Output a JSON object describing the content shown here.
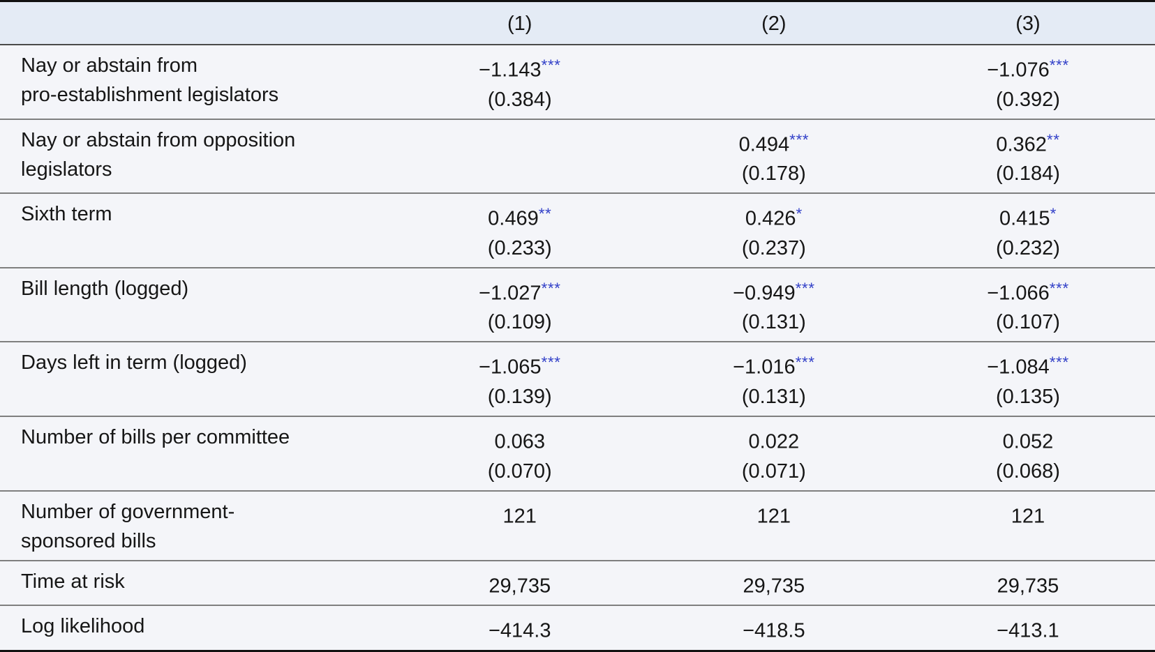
{
  "colors": {
    "star_blue": "#3240c8",
    "header_bg": "#e4ebf5",
    "row_bg": "#f4f5f9",
    "text": "#161616",
    "border_strong": "#111111",
    "border_header": "#4a4a4a",
    "border_row": "#7f7f7f"
  },
  "table": {
    "columns": [
      "(1)",
      "(2)",
      "(3)"
    ],
    "rows": [
      {
        "label": "Nay or abstain from\npro-establishment legislators",
        "cells": [
          {
            "coef": "−1.143",
            "stars": "***",
            "se": "(0.384)"
          },
          {
            "coef": "",
            "stars": "",
            "se": ""
          },
          {
            "coef": "−1.076",
            "stars": "***",
            "se": "(0.392)"
          }
        ]
      },
      {
        "label": "Nay or abstain from opposition\nlegislators",
        "cells": [
          {
            "coef": "",
            "stars": "",
            "se": ""
          },
          {
            "coef": "0.494",
            "stars": "***",
            "se": "(0.178)"
          },
          {
            "coef": "0.362",
            "stars": "**",
            "se": "(0.184)"
          }
        ]
      },
      {
        "label": "Sixth term",
        "cells": [
          {
            "coef": "0.469",
            "stars": "**",
            "se": "(0.233)"
          },
          {
            "coef": "0.426",
            "stars": "*",
            "se": "(0.237)"
          },
          {
            "coef": "0.415",
            "stars": "*",
            "se": "(0.232)"
          }
        ]
      },
      {
        "label": "Bill length (logged)",
        "cells": [
          {
            "coef": "−1.027",
            "stars": "***",
            "se": "(0.109)"
          },
          {
            "coef": "−0.949",
            "stars": "***",
            "se": "(0.131)"
          },
          {
            "coef": "−1.066",
            "stars": "***",
            "se": "(0.107)"
          }
        ]
      },
      {
        "label": "Days left in term (logged)",
        "cells": [
          {
            "coef": "−1.065",
            "stars": "***",
            "se": "(0.139)"
          },
          {
            "coef": "−1.016",
            "stars": "***",
            "se": "(0.131)"
          },
          {
            "coef": "−1.084",
            "stars": "***",
            "se": "(0.135)"
          }
        ]
      },
      {
        "label": "Number of bills per committee",
        "cells": [
          {
            "coef": "0.063",
            "stars": "",
            "se": "(0.070)"
          },
          {
            "coef": "0.022",
            "stars": "",
            "se": "(0.071)"
          },
          {
            "coef": "0.052",
            "stars": "",
            "se": "(0.068)"
          }
        ]
      },
      {
        "label": "Number of government-\nsponsored bills",
        "cells": [
          {
            "coef": "121",
            "stars": "",
            "se": ""
          },
          {
            "coef": "121",
            "stars": "",
            "se": ""
          },
          {
            "coef": "121",
            "stars": "",
            "se": ""
          }
        ]
      },
      {
        "label": "Time at risk",
        "cells": [
          {
            "coef": "29,735",
            "stars": "",
            "se": ""
          },
          {
            "coef": "29,735",
            "stars": "",
            "se": ""
          },
          {
            "coef": "29,735",
            "stars": "",
            "se": ""
          }
        ]
      },
      {
        "label": "Log likelihood",
        "cells": [
          {
            "coef": "−414.3",
            "stars": "",
            "se": ""
          },
          {
            "coef": "−418.5",
            "stars": "",
            "se": ""
          },
          {
            "coef": "−413.1",
            "stars": "",
            "se": ""
          }
        ]
      }
    ]
  }
}
